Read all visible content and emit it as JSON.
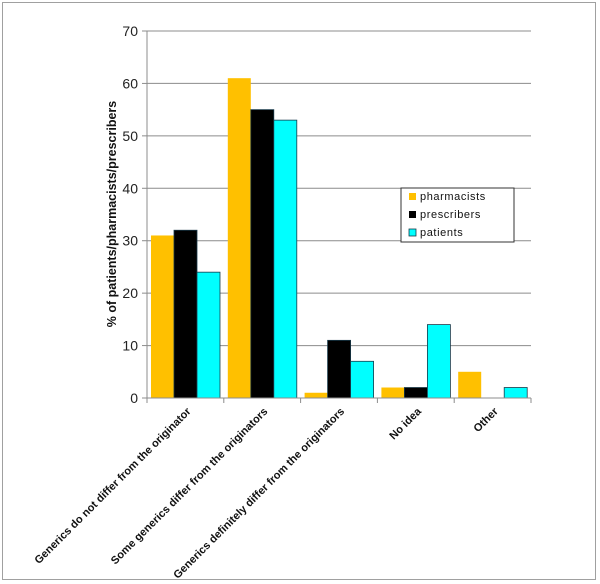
{
  "chart_data": {
    "type": "bar",
    "title": "",
    "xlabel": "",
    "ylabel": "% of patients/pharmacists/prescribers",
    "ylim": [
      0,
      70
    ],
    "yticks": [
      0,
      10,
      20,
      30,
      40,
      50,
      60,
      70
    ],
    "grid": true,
    "legend_position": "right-inside",
    "categories": [
      "Generics do not differ from the originator",
      "Some generics differ from the originators",
      "Generics definitely differ from the originators",
      "No idea",
      "Other"
    ],
    "series": [
      {
        "name": "pharmacists",
        "color": "#FFC000",
        "values": [
          31,
          61,
          1,
          2,
          5
        ]
      },
      {
        "name": "prescribers",
        "color": "#000000",
        "values": [
          32,
          55,
          11,
          2,
          0
        ]
      },
      {
        "name": "patients",
        "color": "#00FFFF",
        "values": [
          24,
          53,
          7,
          14,
          2
        ]
      }
    ]
  },
  "legend": {
    "items": [
      {
        "label": "pharmacists",
        "color": "#FFC000"
      },
      {
        "label": "prescribers",
        "color": "#000000"
      },
      {
        "label": "patients",
        "color": "#00FFFF"
      }
    ]
  }
}
